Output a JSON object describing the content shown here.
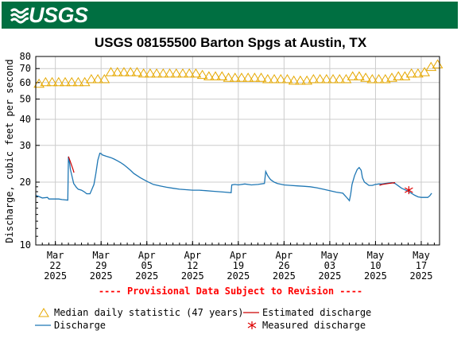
{
  "header": {
    "logo": "USGS"
  },
  "title": "USGS 08155500 Barton Spgs at Austin, TX",
  "provisional_note": "---- Provisional Data Subject to Revision ----",
  "legend": {
    "median": "Median daily statistic (47 years)",
    "estimated": "Estimated discharge",
    "discharge": "Discharge",
    "measured": "Measured discharge"
  },
  "colors": {
    "header": "#006f41",
    "discharge": "#1f77b4",
    "median": "#e6a800",
    "estimated": "#cc0000",
    "measured": "#dd0000"
  },
  "chart_data": {
    "type": "line",
    "title": "USGS 08155500 Barton Spgs at Austin, TX",
    "ylabel": "Discharge, cubic feet per second",
    "yscale": "log",
    "ylim": [
      10,
      80
    ],
    "yticks": [
      10,
      20,
      30,
      40,
      50,
      60,
      70,
      80
    ],
    "xlim": [
      19.0,
      80.8
    ],
    "x_units": "day of year 2025",
    "xticks": [
      {
        "x": 22,
        "label": [
          "Mar",
          "22",
          "2025"
        ]
      },
      {
        "x": 29,
        "label": [
          "Mar",
          "29",
          "2025"
        ]
      },
      {
        "x": 36,
        "label": [
          "Apr",
          "05",
          "2025"
        ]
      },
      {
        "x": 43,
        "label": [
          "Apr",
          "12",
          "2025"
        ]
      },
      {
        "x": 50,
        "label": [
          "Apr",
          "19",
          "2025"
        ]
      },
      {
        "x": 57,
        "label": [
          "Apr",
          "26",
          "2025"
        ]
      },
      {
        "x": 64,
        "label": [
          "May",
          "03",
          "2025"
        ]
      },
      {
        "x": 71,
        "label": [
          "May",
          "10",
          "2025"
        ]
      },
      {
        "x": 78,
        "label": [
          "May",
          "17",
          "2025"
        ]
      }
    ],
    "series": [
      {
        "name": "Median daily statistic (47 years)",
        "marker": "triangle",
        "x": [
          19.5,
          20.5,
          21.5,
          22.5,
          23.5,
          24.5,
          25.5,
          26.5,
          27.5,
          28.5,
          29.5,
          30.5,
          31.5,
          32.5,
          33.5,
          34.5,
          35.5,
          36.5,
          37.5,
          38.5,
          39.5,
          40.5,
          41.5,
          42.5,
          43.5,
          44.5,
          45.5,
          46.5,
          47.5,
          48.5,
          49.5,
          50.5,
          51.5,
          52.5,
          53.5,
          54.5,
          55.5,
          56.5,
          57.5,
          58.5,
          59.5,
          60.5,
          61.5,
          62.5,
          63.5,
          64.5,
          65.5,
          66.5,
          67.5,
          68.5,
          69.5,
          70.5,
          71.5,
          72.5,
          73.5,
          74.5,
          75.5,
          76.5,
          77.5,
          78.5,
          79.5,
          80.5
        ],
        "y": [
          59,
          60,
          60,
          60,
          60,
          60,
          60,
          60,
          62,
          62,
          62,
          67,
          67,
          67,
          67,
          67,
          66,
          66,
          66,
          66,
          66,
          66,
          66,
          66,
          66,
          65,
          64,
          64,
          64,
          63,
          63,
          63,
          63,
          63,
          63,
          62,
          62,
          62,
          62,
          61,
          61,
          61,
          62,
          62,
          62,
          62,
          62,
          62,
          64,
          64,
          63,
          62,
          62,
          62,
          63,
          64,
          64,
          66,
          66,
          67,
          71,
          73
        ]
      },
      {
        "name": "Discharge",
        "x": [
          19.0,
          19.6,
          20.0,
          20.8,
          21.0,
          22.5,
          23.0,
          23.9,
          24.0,
          24.1,
          24.2,
          24.3,
          24.6,
          24.8,
          25.2,
          25.5,
          26.0,
          26.4,
          26.8,
          27.3,
          27.5,
          27.9,
          28.2,
          28.5,
          28.8,
          29.0,
          29.2,
          29.8,
          30.5,
          31.0,
          31.5,
          32.0,
          32.5,
          33.0,
          33.5,
          34.0,
          35.0,
          36.0,
          37.0,
          38.0,
          39.0,
          40.0,
          41.0,
          42.0,
          43.0,
          44.0,
          45.0,
          46.0,
          47.0,
          48.0,
          48.9,
          49.0,
          49.5,
          50.0,
          51.0,
          52.0,
          53.0,
          54.0,
          54.2,
          54.5,
          54.8,
          55.0,
          55.5,
          56.0,
          57.0,
          58.0,
          59.0,
          60.0,
          61.0,
          62.0,
          63.0,
          64.0,
          65.0,
          66.0,
          66.5,
          67.0,
          67.2,
          67.4,
          67.8,
          68.2,
          68.5,
          68.8,
          69.0,
          69.3,
          69.6,
          70.0,
          70.5,
          71.0,
          71.5,
          72.0,
          72.5,
          73.0,
          73.5,
          74.0,
          74.5,
          75.0,
          75.5,
          76.0,
          77.0,
          77.5,
          78.0,
          78.5,
          79.0,
          79.3,
          79.6
        ],
        "y": [
          17.3,
          17.0,
          16.8,
          16.9,
          16.6,
          16.6,
          16.5,
          16.4,
          26.5,
          25.5,
          24.5,
          23.0,
          21.0,
          19.7,
          18.9,
          18.5,
          18.3,
          18.0,
          17.6,
          17.6,
          18.2,
          19.5,
          22.0,
          25.5,
          27.5,
          27.4,
          27.0,
          26.6,
          26.2,
          25.8,
          25.3,
          24.8,
          24.2,
          23.5,
          22.8,
          22.0,
          21.0,
          20.2,
          19.5,
          19.2,
          18.9,
          18.7,
          18.5,
          18.4,
          18.3,
          18.3,
          18.2,
          18.1,
          18.0,
          17.9,
          17.8,
          19.4,
          19.5,
          19.4,
          19.6,
          19.4,
          19.5,
          19.7,
          22.5,
          21.5,
          20.8,
          20.5,
          20.0,
          19.7,
          19.4,
          19.3,
          19.2,
          19.1,
          19.0,
          18.8,
          18.5,
          18.2,
          17.9,
          17.7,
          17.0,
          16.3,
          17.5,
          19.5,
          21.5,
          23.0,
          23.5,
          22.8,
          21.0,
          20.0,
          19.7,
          19.3,
          19.3,
          19.5,
          19.6,
          19.6,
          19.7,
          19.8,
          19.9,
          19.7,
          19.2,
          18.7,
          18.4,
          18.1,
          17.3,
          17.0,
          16.9,
          16.9,
          16.9,
          17.2,
          17.7
        ]
      },
      {
        "name": "Estimated discharge",
        "x": [
          24.0,
          24.15,
          24.3,
          24.5,
          24.7,
          24.85,
          71.6,
          72.0,
          72.5,
          73.0,
          73.5,
          74.0
        ],
        "y": [
          26.5,
          25.8,
          25.0,
          24.0,
          23.0,
          22.2,
          19.3,
          19.5,
          19.6,
          19.7,
          19.8,
          19.9
        ]
      },
      {
        "name": "Measured discharge",
        "marker": "asterisk",
        "x": [
          76.1
        ],
        "y": [
          18.3
        ]
      }
    ],
    "grid": true
  }
}
